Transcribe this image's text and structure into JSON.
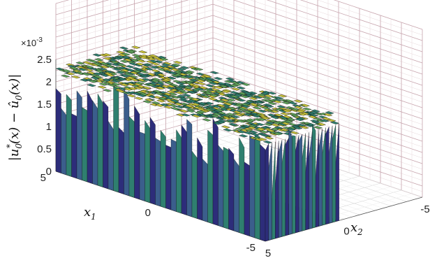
{
  "chart_data": {
    "type": "surface3d",
    "description_free": true,
    "zlabel_parts": [
      "|u",
      "0",
      "*",
      "(x) − û",
      "0",
      "(x)|"
    ],
    "zlabel": "|u0*(x) − û0(x)|",
    "x1_label": "x",
    "x1_sub": "1",
    "x2_label": "x",
    "x2_sub": "2",
    "z_exponent": "×10",
    "z_exponent_power": "-3",
    "z_ticks": [
      "0",
      "0.5",
      "1",
      "1.5",
      "2",
      "2.5"
    ],
    "z_tick_values": [
      0,
      0.5,
      1,
      1.5,
      2,
      2.5
    ],
    "x1_ticks": [
      "5",
      "0",
      "-5"
    ],
    "x2_ticks": [
      "5",
      "0",
      "-5"
    ],
    "x1_range": [
      -5,
      5
    ],
    "x2_range": [
      -5,
      5
    ],
    "z_range": [
      0,
      2.5
    ],
    "plateau_x1_range": [
      -5,
      5
    ],
    "plateau_x2_range": [
      0.3,
      5
    ],
    "plateau_level": 2.4,
    "grid": true,
    "colormap": [
      "#1a1a4e",
      "#2d2d7a",
      "#3b5e8c",
      "#2f7f6f",
      "#5fa35a",
      "#c8c23a"
    ]
  }
}
